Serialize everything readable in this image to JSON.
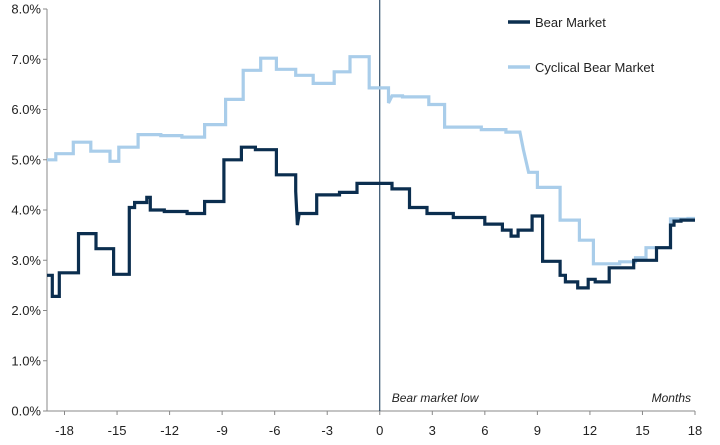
{
  "chart_data": {
    "type": "line",
    "title": "",
    "xlabel": "",
    "ylabel": "",
    "xlim": [
      -19,
      18
    ],
    "ylim": [
      0,
      8
    ],
    "x_ticks": [
      -18,
      -15,
      -12,
      -9,
      -6,
      -3,
      0,
      3,
      6,
      9,
      12,
      15,
      18
    ],
    "x_tick_labels": [
      "-18",
      "-15",
      "-12",
      "-9",
      "-6",
      "-3",
      "0",
      "3",
      "6",
      "9",
      "12",
      "15",
      "18"
    ],
    "y_ticks": [
      0,
      1,
      2,
      3,
      4,
      5,
      6,
      7,
      8
    ],
    "y_tick_labels": [
      "0.0%",
      "1.0%",
      "2.0%",
      "3.0%",
      "4.0%",
      "5.0%",
      "6.0%",
      "7.0%",
      "8.0%"
    ],
    "grid": false,
    "legend_position": "top-right",
    "vertical_reference_x": 0,
    "annotations": [
      "Bear market low",
      "Months"
    ],
    "series": [
      {
        "name": "Bear Market",
        "color": "#0b2e4f",
        "points": [
          [
            -19.0,
            2.7
          ],
          [
            -18.7,
            2.7
          ],
          [
            -18.7,
            2.28
          ],
          [
            -18.3,
            2.28
          ],
          [
            -18.3,
            2.75
          ],
          [
            -17.2,
            2.75
          ],
          [
            -17.2,
            3.53
          ],
          [
            -16.2,
            3.53
          ],
          [
            -16.2,
            3.23
          ],
          [
            -15.2,
            3.23
          ],
          [
            -15.2,
            2.72
          ],
          [
            -14.3,
            2.72
          ],
          [
            -14.3,
            4.05
          ],
          [
            -14.0,
            4.05
          ],
          [
            -14.0,
            4.15
          ],
          [
            -13.3,
            4.15
          ],
          [
            -13.3,
            4.25
          ],
          [
            -13.1,
            4.25
          ],
          [
            -13.1,
            4.0
          ],
          [
            -12.3,
            4.0
          ],
          [
            -12.3,
            3.97
          ],
          [
            -11.0,
            3.97
          ],
          [
            -11.0,
            3.93
          ],
          [
            -10.0,
            3.93
          ],
          [
            -10.0,
            4.17
          ],
          [
            -8.9,
            4.17
          ],
          [
            -8.9,
            5.0
          ],
          [
            -7.9,
            5.0
          ],
          [
            -7.9,
            5.25
          ],
          [
            -7.1,
            5.25
          ],
          [
            -7.1,
            5.2
          ],
          [
            -5.9,
            5.2
          ],
          [
            -5.9,
            4.7
          ],
          [
            -4.8,
            4.7
          ],
          [
            -4.8,
            4.37
          ],
          [
            -4.7,
            3.7
          ],
          [
            -4.6,
            3.93
          ],
          [
            -3.6,
            3.93
          ],
          [
            -3.6,
            4.3
          ],
          [
            -2.3,
            4.3
          ],
          [
            -2.3,
            4.35
          ],
          [
            -1.3,
            4.35
          ],
          [
            -1.3,
            4.53
          ],
          [
            0.7,
            4.53
          ],
          [
            0.7,
            4.42
          ],
          [
            1.7,
            4.42
          ],
          [
            1.7,
            4.05
          ],
          [
            2.7,
            4.05
          ],
          [
            2.7,
            3.93
          ],
          [
            4.2,
            3.93
          ],
          [
            4.2,
            3.85
          ],
          [
            6.0,
            3.85
          ],
          [
            6.0,
            3.72
          ],
          [
            7.0,
            3.72
          ],
          [
            7.0,
            3.6
          ],
          [
            7.5,
            3.6
          ],
          [
            7.5,
            3.48
          ],
          [
            7.9,
            3.48
          ],
          [
            7.9,
            3.6
          ],
          [
            8.7,
            3.6
          ],
          [
            8.7,
            3.88
          ],
          [
            9.3,
            3.88
          ],
          [
            9.3,
            2.98
          ],
          [
            10.3,
            2.98
          ],
          [
            10.3,
            2.7
          ],
          [
            10.6,
            2.7
          ],
          [
            10.6,
            2.57
          ],
          [
            11.3,
            2.57
          ],
          [
            11.3,
            2.45
          ],
          [
            11.9,
            2.45
          ],
          [
            11.9,
            2.62
          ],
          [
            12.3,
            2.62
          ],
          [
            12.3,
            2.57
          ],
          [
            13.1,
            2.57
          ],
          [
            13.1,
            2.85
          ],
          [
            14.5,
            2.85
          ],
          [
            14.5,
            3.0
          ],
          [
            15.8,
            3.0
          ],
          [
            15.8,
            3.25
          ],
          [
            16.6,
            3.25
          ],
          [
            16.6,
            3.7
          ],
          [
            16.8,
            3.7
          ],
          [
            16.8,
            3.78
          ],
          [
            17.2,
            3.78
          ],
          [
            17.2,
            3.8
          ],
          [
            18.0,
            3.8
          ]
        ]
      },
      {
        "name": "Cyclical Bear Market",
        "color": "#a9cdea",
        "points": [
          [
            -19.0,
            5.0
          ],
          [
            -18.5,
            5.0
          ],
          [
            -18.5,
            5.12
          ],
          [
            -17.5,
            5.12
          ],
          [
            -17.5,
            5.35
          ],
          [
            -16.5,
            5.35
          ],
          [
            -16.5,
            5.17
          ],
          [
            -15.4,
            5.17
          ],
          [
            -15.4,
            4.97
          ],
          [
            -14.9,
            4.97
          ],
          [
            -14.9,
            5.25
          ],
          [
            -13.8,
            5.25
          ],
          [
            -13.8,
            5.5
          ],
          [
            -12.5,
            5.5
          ],
          [
            -12.5,
            5.48
          ],
          [
            -11.3,
            5.48
          ],
          [
            -11.3,
            5.45
          ],
          [
            -10.0,
            5.45
          ],
          [
            -10.0,
            5.7
          ],
          [
            -8.8,
            5.7
          ],
          [
            -8.8,
            6.2
          ],
          [
            -7.8,
            6.2
          ],
          [
            -7.8,
            6.78
          ],
          [
            -6.8,
            6.78
          ],
          [
            -6.8,
            7.02
          ],
          [
            -5.9,
            7.02
          ],
          [
            -5.9,
            6.8
          ],
          [
            -4.8,
            6.8
          ],
          [
            -4.8,
            6.68
          ],
          [
            -3.8,
            6.68
          ],
          [
            -3.8,
            6.52
          ],
          [
            -2.6,
            6.52
          ],
          [
            -2.6,
            6.75
          ],
          [
            -1.7,
            6.75
          ],
          [
            -1.7,
            7.05
          ],
          [
            -0.6,
            7.05
          ],
          [
            -0.6,
            6.43
          ],
          [
            0.5,
            6.43
          ],
          [
            0.5,
            6.13
          ],
          [
            0.7,
            6.27
          ],
          [
            1.3,
            6.27
          ],
          [
            1.3,
            6.25
          ],
          [
            2.8,
            6.25
          ],
          [
            2.8,
            6.1
          ],
          [
            3.7,
            6.1
          ],
          [
            3.7,
            5.65
          ],
          [
            5.8,
            5.65
          ],
          [
            5.8,
            5.6
          ],
          [
            7.2,
            5.6
          ],
          [
            7.2,
            5.55
          ],
          [
            8.0,
            5.55
          ],
          [
            8.2,
            5.2
          ],
          [
            8.5,
            4.75
          ],
          [
            9.0,
            4.75
          ],
          [
            9.0,
            4.45
          ],
          [
            10.3,
            4.45
          ],
          [
            10.3,
            3.8
          ],
          [
            11.4,
            3.8
          ],
          [
            11.4,
            3.4
          ],
          [
            12.2,
            3.4
          ],
          [
            12.2,
            2.93
          ],
          [
            13.7,
            2.93
          ],
          [
            13.7,
            2.97
          ],
          [
            14.6,
            2.97
          ],
          [
            14.6,
            3.05
          ],
          [
            15.2,
            3.05
          ],
          [
            15.2,
            3.25
          ],
          [
            16.6,
            3.25
          ],
          [
            16.6,
            3.82
          ],
          [
            17.6,
            3.82
          ],
          [
            17.6,
            3.83
          ],
          [
            18.0,
            3.83
          ]
        ]
      }
    ]
  }
}
